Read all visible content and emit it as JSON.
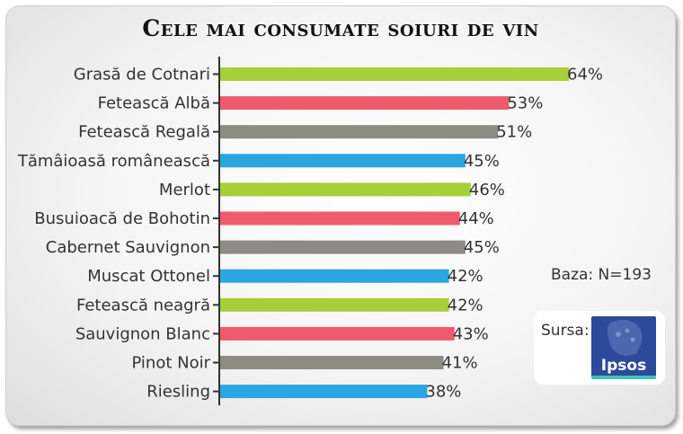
{
  "chart_data": {
    "type": "bar",
    "orientation": "horizontal",
    "title": "Cele mai consumate soiuri de vin",
    "categories": [
      "Grasă de Cotnari",
      "Fetească Albă",
      "Fetească Regală",
      "Tămâioasă românească",
      "Merlot",
      "Busuioacă de Bohotin",
      "Cabernet Sauvignon",
      "Muscat Ottonel",
      "Fetească neagră",
      "Sauvignon Blanc",
      "Pinot Noir",
      "Riesling"
    ],
    "values": [
      64,
      53,
      51,
      45,
      46,
      44,
      45,
      42,
      42,
      43,
      41,
      38
    ],
    "value_labels": [
      "64%",
      "53%",
      "51%",
      "45%",
      "46%",
      "44%",
      "45%",
      "42%",
      "42%",
      "43%",
      "41%",
      "38%"
    ],
    "unit": "%",
    "colors": [
      "#a6cf3a",
      "#ef5b6c",
      "#8c8c84",
      "#2aa6e0"
    ],
    "xlim": [
      0,
      100
    ]
  },
  "notes": {
    "base": "Baza: N=193",
    "source_label": "Sursa:",
    "source_logo": "Ipsos"
  }
}
